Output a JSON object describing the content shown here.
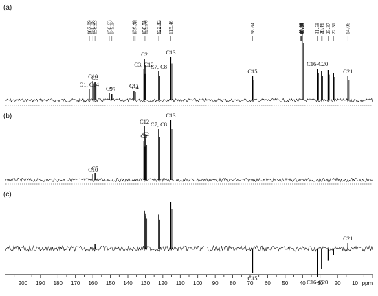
{
  "chart_data": {
    "type": "line",
    "x_unit": "ppm",
    "xlim": [
      210,
      0
    ],
    "x_ticks": [
      200,
      190,
      180,
      170,
      160,
      150,
      140,
      130,
      120,
      110,
      100,
      90,
      80,
      70,
      60,
      50,
      40,
      30,
      20,
      10
    ],
    "x_tick_labels": [
      "200",
      "190",
      "180",
      "170",
      "160",
      "150",
      "140",
      "130",
      "120",
      "110",
      "100",
      "90",
      "80",
      "70",
      "60",
      "50",
      "40",
      "30",
      "20",
      "10"
    ],
    "x_unit_label": "ppm",
    "chemical_shift_labels": [
      "162.09",
      "162.02",
      "159.98",
      "158.83",
      "150.63",
      "149.14",
      "136.49",
      "135.76",
      "130.81",
      "130.53",
      "129.76",
      "122.32",
      "122.13",
      "115.46",
      "68.64",
      "41.08",
      "40.91",
      "40.74",
      "40.58",
      "40.41",
      "40.24",
      "40.08",
      "31.58",
      "29.16",
      "28.76",
      "25.37",
      "22.31",
      "14.06"
    ],
    "panels": [
      {
        "label": "(a)",
        "peaks": [
          {
            "ppm": 162.09,
            "height": 0.16,
            "label": "C1, C14"
          },
          {
            "ppm": 159.98,
            "height": 0.28,
            "label": "C10"
          },
          {
            "ppm": 158.83,
            "height": 0.26,
            "label": "C5"
          },
          {
            "ppm": 150.63,
            "height": 0.1,
            "label": "C9"
          },
          {
            "ppm": 149.14,
            "height": 0.09,
            "label": "C6"
          },
          {
            "ppm": 136.49,
            "height": 0.14,
            "label": "C11"
          },
          {
            "ppm": 135.76,
            "height": 0.12,
            "label": "C4"
          },
          {
            "ppm": 130.81,
            "height": 0.45,
            "label": "C3, C12"
          },
          {
            "ppm": 130.53,
            "height": 0.6,
            "label": "C2"
          },
          {
            "ppm": 122.32,
            "height": 0.42,
            "label": "C7, C8"
          },
          {
            "ppm": 115.46,
            "height": 0.63,
            "label": "C13"
          },
          {
            "ppm": 68.64,
            "height": 0.35,
            "label": "C15"
          },
          {
            "ppm": 40.24,
            "height": 0.98,
            "label": ""
          },
          {
            "ppm": 31.58,
            "height": 0.46,
            "label": "C16-C20"
          },
          {
            "ppm": 29.16,
            "height": 0.42,
            "label": ""
          },
          {
            "ppm": 25.37,
            "height": 0.44,
            "label": ""
          },
          {
            "ppm": 22.31,
            "height": 0.4,
            "label": ""
          },
          {
            "ppm": 14.06,
            "height": 0.35,
            "label": "C21"
          }
        ]
      },
      {
        "label": "(b)",
        "peaks": [
          {
            "ppm": 159.98,
            "height": 0.08,
            "label": "C10"
          },
          {
            "ppm": 158.83,
            "height": 0.1,
            "label": "C5"
          },
          {
            "ppm": 130.81,
            "height": 0.57,
            "label": "C3"
          },
          {
            "ppm": 130.53,
            "height": 0.78,
            "label": "C12"
          },
          {
            "ppm": 129.76,
            "height": 0.6,
            "label": "C2"
          },
          {
            "ppm": 122.32,
            "height": 0.74,
            "label": "C7, C8"
          },
          {
            "ppm": 115.46,
            "height": 0.87,
            "label": "C13"
          }
        ]
      },
      {
        "label": "(c)",
        "peaks": [
          {
            "ppm": 158.83,
            "height": 0.08,
            "label": ""
          },
          {
            "ppm": 130.53,
            "height": 0.69,
            "label": ""
          },
          {
            "ppm": 129.76,
            "height": 0.64,
            "label": ""
          },
          {
            "ppm": 122.32,
            "height": 0.62,
            "label": ""
          },
          {
            "ppm": 115.46,
            "height": 0.85,
            "label": ""
          },
          {
            "ppm": 68.64,
            "height": -0.45,
            "label": "C15"
          },
          {
            "ppm": 31.58,
            "height": -0.52,
            "label": "C16-C20"
          },
          {
            "ppm": 29.16,
            "height": -0.37,
            "label": ""
          },
          {
            "ppm": 25.37,
            "height": -0.22,
            "label": ""
          },
          {
            "ppm": 22.31,
            "height": -0.12,
            "label": ""
          },
          {
            "ppm": 14.06,
            "height": 0.1,
            "label": "C21"
          }
        ]
      }
    ]
  }
}
